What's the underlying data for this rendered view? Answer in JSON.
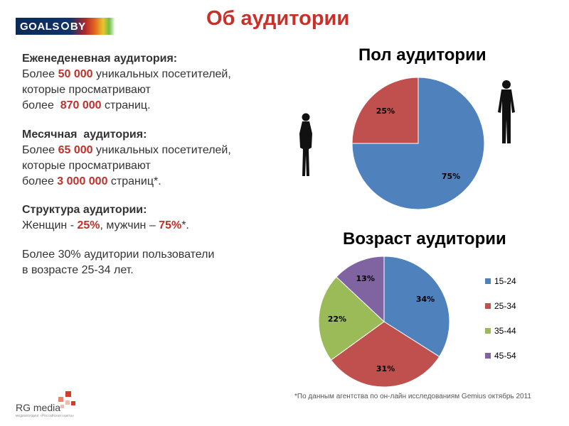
{
  "logo": {
    "part1": "GOALS",
    "part2": "BY"
  },
  "title": "Об аудитории",
  "weekly": {
    "heading": "Еженеденевная аудитория:",
    "l1a": "Более ",
    "l1num": "50 000",
    "l1b": " уникальных посетителей,",
    "l2": "которые просматривают",
    "l3a": "более  ",
    "l3num": "870 000",
    "l3b": " страниц."
  },
  "monthly": {
    "heading": "Месячная  аудитория:",
    "l1a": "Более ",
    "l1num": "65 000",
    "l1b": " уникальных посетителей,",
    "l2": "которые просматривают",
    "l3a": "более ",
    "l3num": "3 000 000",
    "l3b": " страниц*."
  },
  "structure": {
    "heading": "Структура аудитории:",
    "a": "Женщин - ",
    "num1": "25%",
    "b": ", мужчин – ",
    "num2": "75%",
    "c": "*."
  },
  "age_note": {
    "l1": "Более 30% аудитории пользователи",
    "l2": "в возрасте 25-34 лет."
  },
  "footnote": "*По данным агентства по он-лайн исследованиям Gemius октябрь 2011",
  "brand": {
    "name": "RG media",
    "tagline": "медиахолдинг «Российская газета»"
  },
  "colors": {
    "blue": "#4f81bd",
    "red": "#c0504d",
    "green": "#9bbb59",
    "purple": "#8064a2",
    "accent": "#c8302a"
  },
  "chart_data": [
    {
      "type": "pie",
      "title": "Пол аудитории",
      "categories": [
        "Мужчины",
        "Женщины"
      ],
      "values": [
        75,
        25
      ],
      "labels": [
        "75%",
        "25%"
      ]
    },
    {
      "type": "pie",
      "title": "Возраст аудитории",
      "categories": [
        "15-24",
        "25-34",
        "35-44",
        "45-54"
      ],
      "values": [
        34,
        31,
        22,
        13
      ],
      "labels": [
        "34%",
        "31%",
        "22%",
        "13%"
      ],
      "legend_position": "right"
    }
  ]
}
